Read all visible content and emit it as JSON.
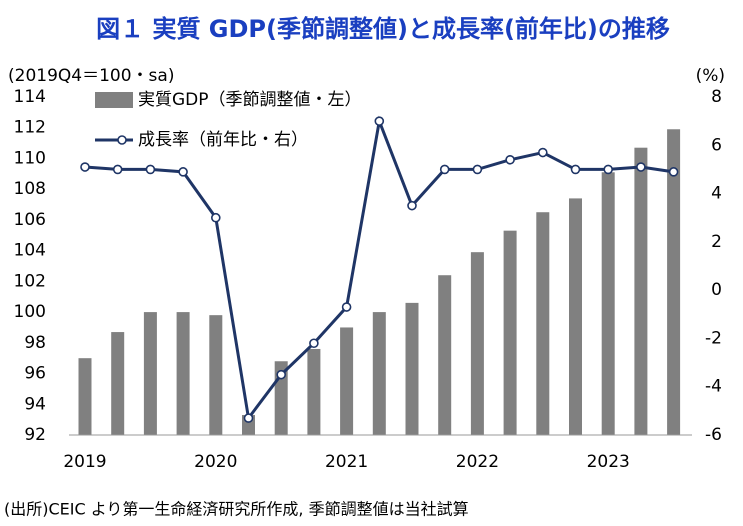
{
  "chart_data": {
    "type": "bar-line",
    "title": "図１ 実質 GDP(季節調整値)と成長率(前年比)の推移",
    "y_label": "(2019Q4＝100・sa)",
    "y2_label": "(%)",
    "note": "(出所)CEIC より第一生命経済研究所作成, 季節調整値は当社試算",
    "categories": [
      "2019",
      null,
      null,
      null,
      "2020",
      null,
      null,
      null,
      "2021",
      null,
      null,
      null,
      "2022",
      null,
      null,
      null,
      "2023",
      null,
      null
    ],
    "series": [
      {
        "name": "実質GDP（季節調整値・左）",
        "type": "bar",
        "color": "#808080",
        "values": [
          97.0,
          98.7,
          100.0,
          100.0,
          99.8,
          93.3,
          96.8,
          97.6,
          99.0,
          100.0,
          100.6,
          102.4,
          103.9,
          105.3,
          106.5,
          107.4,
          109.1,
          110.7,
          111.9
        ]
      },
      {
        "name": "成長率（前年比・右）",
        "type": "line",
        "axis": "y2",
        "color": "#1f3566",
        "values": [
          5.1,
          5.0,
          5.0,
          4.9,
          3.0,
          -5.3,
          -3.5,
          -2.2,
          -0.7,
          7.0,
          3.5,
          5.0,
          5.0,
          5.4,
          5.7,
          5.0,
          5.0,
          5.1,
          4.9
        ]
      }
    ],
    "ylim": [
      92,
      114
    ],
    "yticks": [
      92,
      94,
      96,
      98,
      100,
      102,
      104,
      106,
      108,
      110,
      112,
      114
    ],
    "y2lim": [
      -6,
      8
    ],
    "y2ticks": [
      -6,
      -4,
      -2,
      0,
      2,
      4,
      6,
      8
    ]
  }
}
